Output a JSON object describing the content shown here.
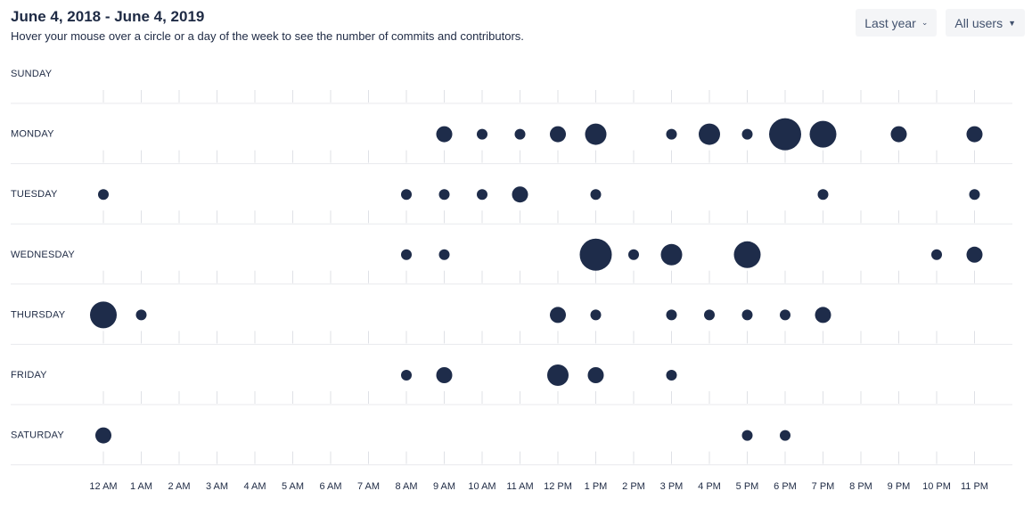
{
  "header": {
    "title": "June 4, 2018 - June 4, 2019",
    "subtitle": "Hover your mouse over a circle or a day of the week to see the number of commits and contributors."
  },
  "controls": {
    "range_label": "Last year",
    "users_label": "All users"
  },
  "colors": {
    "dot": "#1e2c4a",
    "grid": "#e8eaed"
  },
  "chart_data": {
    "type": "scatter",
    "title": "June 4, 2018 - June 4, 2019",
    "days": [
      "SUNDAY",
      "MONDAY",
      "TUESDAY",
      "WEDNESDAY",
      "THURSDAY",
      "FRIDAY",
      "SATURDAY"
    ],
    "hours": [
      "12 AM",
      "1 AM",
      "2 AM",
      "3 AM",
      "4 AM",
      "5 AM",
      "6 AM",
      "7 AM",
      "8 AM",
      "9 AM",
      "10 AM",
      "11 AM",
      "12 PM",
      "1 PM",
      "2 PM",
      "3 PM",
      "4 PM",
      "5 PM",
      "6 PM",
      "7 PM",
      "8 PM",
      "9 PM",
      "10 PM",
      "11 PM"
    ],
    "size_scale_max": 5,
    "points": [
      {
        "day": 1,
        "hour": 9,
        "value": 2
      },
      {
        "day": 1,
        "hour": 10,
        "value": 1
      },
      {
        "day": 1,
        "hour": 11,
        "value": 1
      },
      {
        "day": 1,
        "hour": 12,
        "value": 2
      },
      {
        "day": 1,
        "hour": 13,
        "value": 3
      },
      {
        "day": 1,
        "hour": 15,
        "value": 1
      },
      {
        "day": 1,
        "hour": 16,
        "value": 3
      },
      {
        "day": 1,
        "hour": 17,
        "value": 1
      },
      {
        "day": 1,
        "hour": 18,
        "value": 5
      },
      {
        "day": 1,
        "hour": 19,
        "value": 4
      },
      {
        "day": 1,
        "hour": 21,
        "value": 2
      },
      {
        "day": 1,
        "hour": 23,
        "value": 2
      },
      {
        "day": 2,
        "hour": 0,
        "value": 1
      },
      {
        "day": 2,
        "hour": 8,
        "value": 1
      },
      {
        "day": 2,
        "hour": 9,
        "value": 1
      },
      {
        "day": 2,
        "hour": 10,
        "value": 1
      },
      {
        "day": 2,
        "hour": 11,
        "value": 2
      },
      {
        "day": 2,
        "hour": 13,
        "value": 1
      },
      {
        "day": 2,
        "hour": 19,
        "value": 1
      },
      {
        "day": 2,
        "hour": 23,
        "value": 1
      },
      {
        "day": 3,
        "hour": 8,
        "value": 1
      },
      {
        "day": 3,
        "hour": 9,
        "value": 1
      },
      {
        "day": 3,
        "hour": 13,
        "value": 5
      },
      {
        "day": 3,
        "hour": 14,
        "value": 1
      },
      {
        "day": 3,
        "hour": 15,
        "value": 3
      },
      {
        "day": 3,
        "hour": 17,
        "value": 4
      },
      {
        "day": 3,
        "hour": 22,
        "value": 1
      },
      {
        "day": 3,
        "hour": 23,
        "value": 2
      },
      {
        "day": 4,
        "hour": 0,
        "value": 4
      },
      {
        "day": 4,
        "hour": 1,
        "value": 1
      },
      {
        "day": 4,
        "hour": 12,
        "value": 2
      },
      {
        "day": 4,
        "hour": 13,
        "value": 1
      },
      {
        "day": 4,
        "hour": 15,
        "value": 1
      },
      {
        "day": 4,
        "hour": 16,
        "value": 1
      },
      {
        "day": 4,
        "hour": 17,
        "value": 1
      },
      {
        "day": 4,
        "hour": 18,
        "value": 1
      },
      {
        "day": 4,
        "hour": 19,
        "value": 2
      },
      {
        "day": 5,
        "hour": 8,
        "value": 1
      },
      {
        "day": 5,
        "hour": 9,
        "value": 2
      },
      {
        "day": 5,
        "hour": 12,
        "value": 3
      },
      {
        "day": 5,
        "hour": 13,
        "value": 2
      },
      {
        "day": 5,
        "hour": 15,
        "value": 1
      },
      {
        "day": 6,
        "hour": 0,
        "value": 2
      },
      {
        "day": 6,
        "hour": 17,
        "value": 1
      },
      {
        "day": 6,
        "hour": 18,
        "value": 1
      }
    ]
  }
}
